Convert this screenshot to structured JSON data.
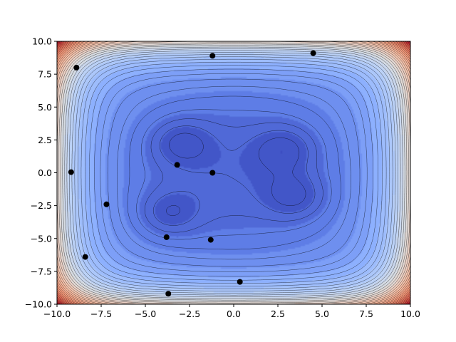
{
  "chart_data": {
    "type": "contour",
    "title": "",
    "xlabel": "",
    "ylabel": "",
    "xlim": [
      -10,
      10
    ],
    "ylim": [
      -10,
      10
    ],
    "grid": false,
    "legend": "none",
    "colormap": "coolwarm",
    "surface": {
      "description_of_minima": "four shallow wells",
      "wells": [
        {
          "x": -3.0,
          "y": 2.3
        },
        {
          "x": 2.9,
          "y": 1.8
        },
        {
          "x": 3.5,
          "y": -1.8
        },
        {
          "x": -3.7,
          "y": -3.1
        }
      ],
      "filled_levels": 22,
      "line_levels": 40
    },
    "x_ticks": [
      {
        "value": -10,
        "label": "−10.0"
      },
      {
        "value": -7.5,
        "label": "−7.5"
      },
      {
        "value": -5,
        "label": "−5.0"
      },
      {
        "value": -2.5,
        "label": "−2.5"
      },
      {
        "value": 0,
        "label": "0.0"
      },
      {
        "value": 2.5,
        "label": "2.5"
      },
      {
        "value": 5,
        "label": "5.0"
      },
      {
        "value": 7.5,
        "label": "7.5"
      },
      {
        "value": 10,
        "label": "10.0"
      }
    ],
    "y_ticks": [
      {
        "value": -10,
        "label": "−10.0"
      },
      {
        "value": -7.5,
        "label": "−7.5"
      },
      {
        "value": -5,
        "label": "−5.0"
      },
      {
        "value": -2.5,
        "label": "−2.5"
      },
      {
        "value": 0,
        "label": "0.0"
      },
      {
        "value": 2.5,
        "label": "2.5"
      },
      {
        "value": 5,
        "label": "5.0"
      },
      {
        "value": 7.5,
        "label": "7.5"
      },
      {
        "value": 10,
        "label": "10.0"
      }
    ],
    "points": [
      {
        "x": -8.9,
        "y": 8.0
      },
      {
        "x": -1.2,
        "y": 8.9
      },
      {
        "x": 4.5,
        "y": 9.1
      },
      {
        "x": -9.2,
        "y": 0.05
      },
      {
        "x": -3.2,
        "y": 0.6
      },
      {
        "x": -1.2,
        "y": 0.0
      },
      {
        "x": -7.2,
        "y": -2.4
      },
      {
        "x": -3.8,
        "y": -4.9
      },
      {
        "x": -1.3,
        "y": -5.1
      },
      {
        "x": -8.4,
        "y": -6.4
      },
      {
        "x": 0.35,
        "y": -8.3
      },
      {
        "x": -3.7,
        "y": -9.2
      }
    ],
    "point_color": "#000000"
  }
}
